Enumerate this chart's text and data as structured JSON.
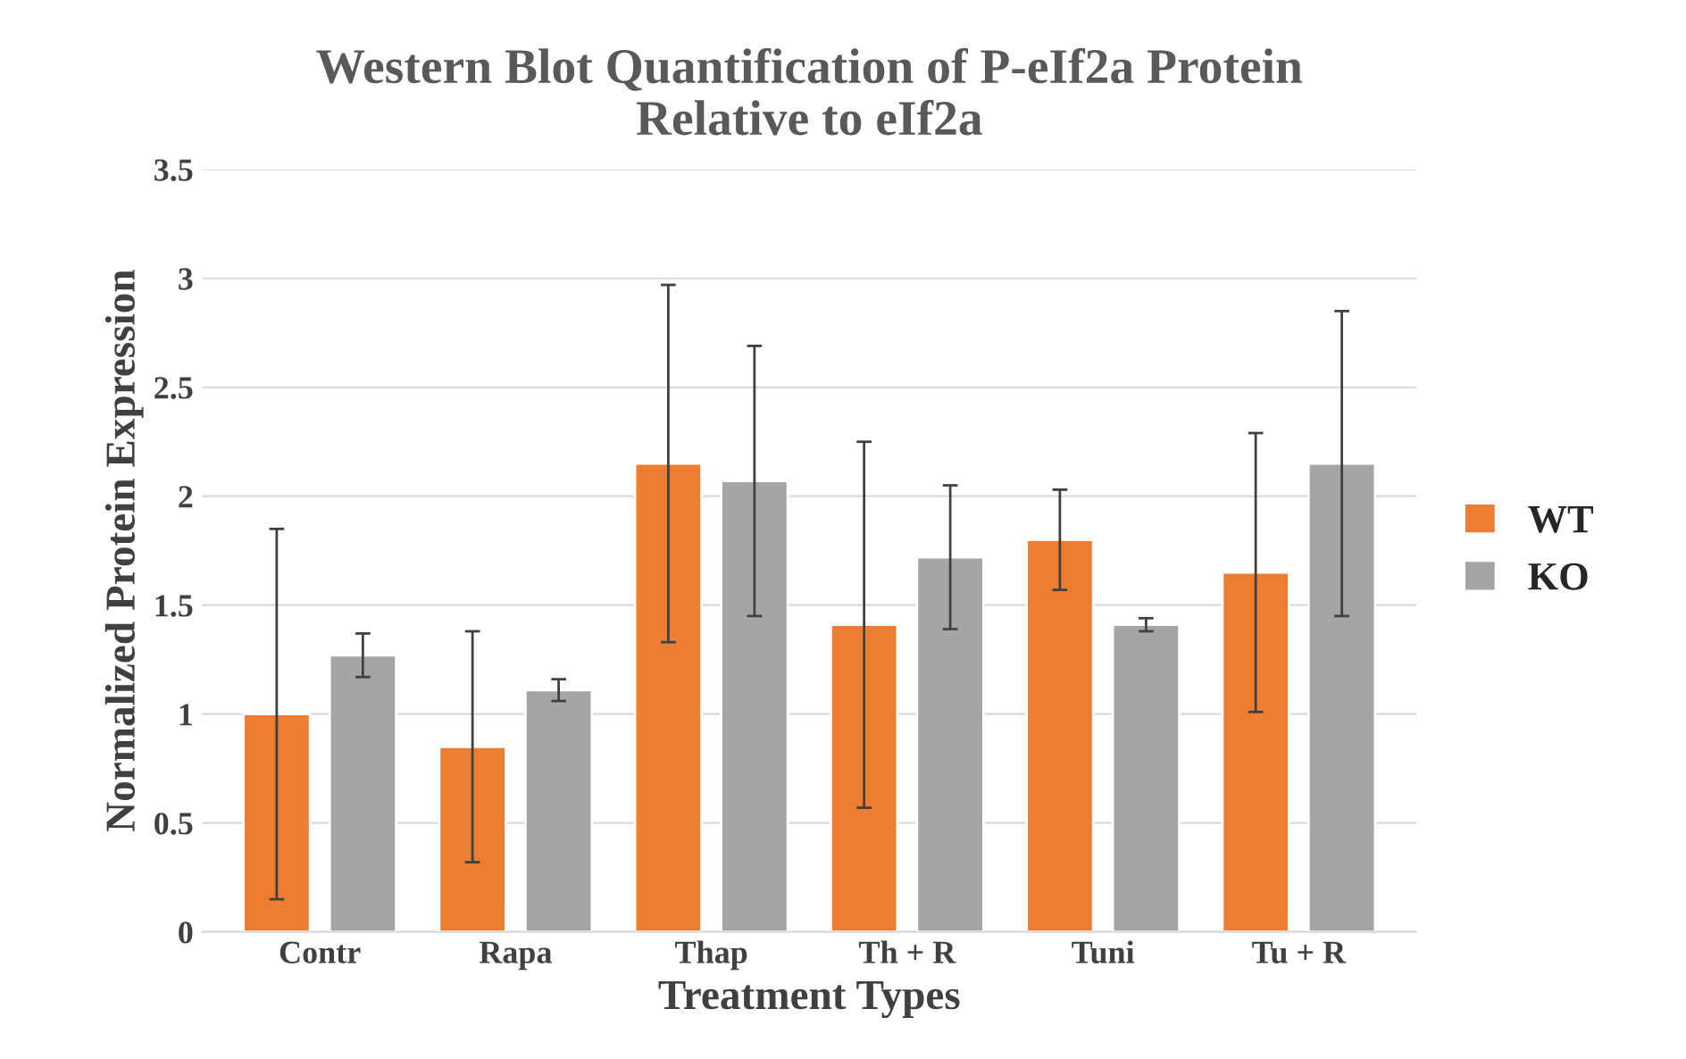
{
  "chart_data": {
    "type": "bar",
    "title": "Western Blot Quantification of P-eIf2a Protein\nRelative to eIf2a",
    "xlabel": "Treatment Types",
    "ylabel": "Normalized Protein Expression",
    "categories": [
      "Contr",
      "Rapa",
      "Thap",
      "Th + R",
      "Tuni",
      "Tu + R"
    ],
    "series": [
      {
        "name": "WT",
        "color": "#ed7d31",
        "values": [
          1.0,
          0.85,
          2.15,
          1.41,
          1.8,
          1.65
        ],
        "errors": [
          0.85,
          0.53,
          0.82,
          0.84,
          0.23,
          0.64
        ]
      },
      {
        "name": "KO",
        "color": "#a5a5a5",
        "values": [
          1.27,
          1.11,
          2.07,
          1.72,
          1.41,
          2.15
        ],
        "errors": [
          0.1,
          0.05,
          0.62,
          0.33,
          0.03,
          0.7
        ]
      }
    ],
    "ylim": [
      0,
      3.5
    ],
    "yticks": [
      0,
      0.5,
      1,
      1.5,
      2,
      2.5,
      3,
      3.5
    ],
    "grid": "y",
    "legend": "right"
  }
}
